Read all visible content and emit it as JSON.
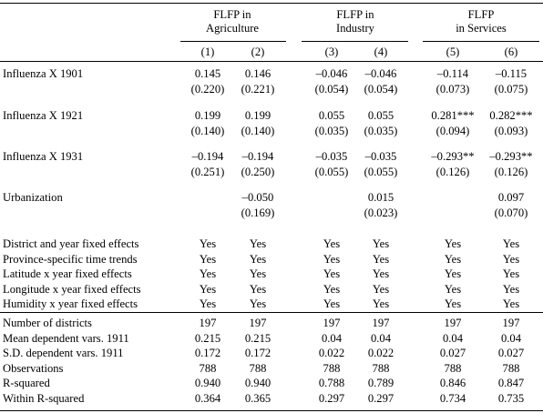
{
  "groups": [
    {
      "line1": "FLFP in",
      "line2": "Agriculture"
    },
    {
      "line1": "FLFP in",
      "line2": "Industry"
    },
    {
      "line1": "FLFP",
      "line2": "in Services"
    }
  ],
  "col_numbers": [
    "(1)",
    "(2)",
    "(3)",
    "(4)",
    "(5)",
    "(6)"
  ],
  "coef_rows": [
    {
      "label": "Influenza X 1901",
      "coef": [
        "0.145",
        "0.146",
        "–0.046",
        "–0.046",
        "–0.114",
        "–0.115"
      ],
      "se": [
        "(0.220)",
        "(0.221)",
        "(0.054)",
        "(0.054)",
        "(0.073)",
        "(0.075)"
      ]
    },
    {
      "label": "Influenza X 1921",
      "coef": [
        "0.199",
        "0.199",
        "0.055",
        "0.055",
        "0.281***",
        "0.282***"
      ],
      "se": [
        "(0.140)",
        "(0.140)",
        "(0.035)",
        "(0.035)",
        "(0.094)",
        "(0.093)"
      ]
    },
    {
      "label": "Influenza X 1931",
      "coef": [
        "–0.194",
        "–0.194",
        "–0.035",
        "–0.035",
        "–0.293**",
        "–0.293**"
      ],
      "se": [
        "(0.251)",
        "(0.250)",
        "(0.055)",
        "(0.055)",
        "(0.126)",
        "(0.126)"
      ]
    },
    {
      "label": "Urbanization",
      "coef": [
        "",
        "–0.050",
        "",
        "0.015",
        "",
        "0.097"
      ],
      "se": [
        "",
        "(0.169)",
        "",
        "(0.023)",
        "",
        "(0.070)"
      ]
    }
  ],
  "fe_rows": [
    {
      "label": "District and year fixed effects",
      "values": [
        "Yes",
        "Yes",
        "Yes",
        "Yes",
        "Yes",
        "Yes"
      ]
    },
    {
      "label": "Province-specific time trends",
      "values": [
        "Yes",
        "Yes",
        "Yes",
        "Yes",
        "Yes",
        "Yes"
      ]
    },
    {
      "label": "Latitude x year fixed effects",
      "values": [
        "Yes",
        "Yes",
        "Yes",
        "Yes",
        "Yes",
        "Yes"
      ]
    },
    {
      "label": "Longitude x year fixed effects",
      "values": [
        "Yes",
        "Yes",
        "Yes",
        "Yes",
        "Yes",
        "Yes"
      ]
    },
    {
      "label": "Humidity x year fixed effects",
      "values": [
        "Yes",
        "Yes",
        "Yes",
        "Yes",
        "Yes",
        "Yes"
      ]
    }
  ],
  "stat_rows": [
    {
      "label": "Number of districts",
      "values": [
        "197",
        "197",
        "197",
        "197",
        "197",
        "197"
      ]
    },
    {
      "label": "Mean dependent vars. 1911",
      "values": [
        "0.215",
        "0.215",
        "0.04",
        "0.04",
        "0.04",
        "0.04"
      ]
    },
    {
      "label": "S.D. dependent vars. 1911",
      "values": [
        "0.172",
        "0.172",
        "0.022",
        "0.022",
        "0.027",
        "0.027"
      ]
    },
    {
      "label": "Observations",
      "values": [
        "788",
        "788",
        "788",
        "788",
        "788",
        "788"
      ]
    },
    {
      "label": "R-squared",
      "values": [
        "0.940",
        "0.940",
        "0.788",
        "0.789",
        "0.846",
        "0.847"
      ]
    },
    {
      "label": "Within R-squared",
      "values": [
        "0.364",
        "0.365",
        "0.297",
        "0.297",
        "0.734",
        "0.735"
      ]
    }
  ]
}
